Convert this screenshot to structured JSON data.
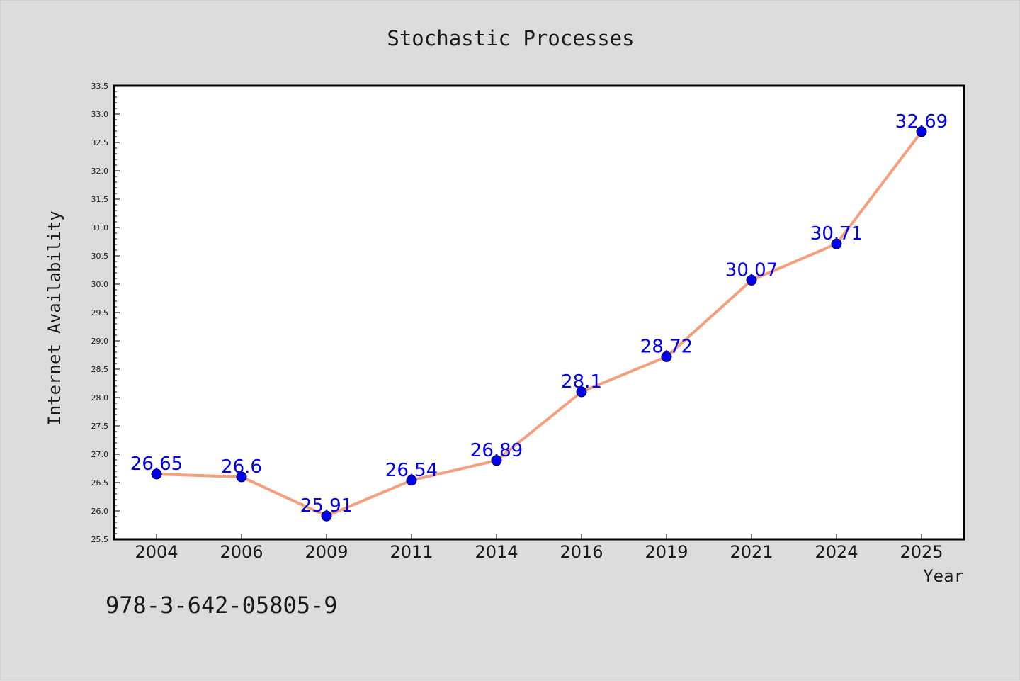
{
  "chart_data": {
    "type": "line",
    "title": "Stochastic Processes",
    "xlabel": "Year",
    "ylabel": "Internet Availability",
    "categories": [
      "2004",
      "2006",
      "2009",
      "2011",
      "2014",
      "2016",
      "2019",
      "2021",
      "2024",
      "2025"
    ],
    "values": [
      26.65,
      26.6,
      25.91,
      26.54,
      26.89,
      28.1,
      28.72,
      30.07,
      30.71,
      32.69
    ],
    "data_labels": [
      "26.65",
      "26.6",
      "25.91",
      "26.54",
      "26.89",
      "28.1",
      "28.72",
      "30.07",
      "30.71",
      "32.69"
    ],
    "ylim": [
      25.5,
      33.5
    ],
    "yticks": [
      "25.5",
      "26.0",
      "26.5",
      "27.0",
      "27.5",
      "28.0",
      "28.5",
      "29.0",
      "29.5",
      "30.0",
      "30.5",
      "31.0",
      "31.5",
      "32.0",
      "32.5",
      "33.0",
      "33.5"
    ],
    "grid": false,
    "line_color": "#f4a07e",
    "marker_color": "#0000ee",
    "label_color": "#0000ee"
  },
  "footer": {
    "isbn": "978-3-642-05805-9"
  }
}
